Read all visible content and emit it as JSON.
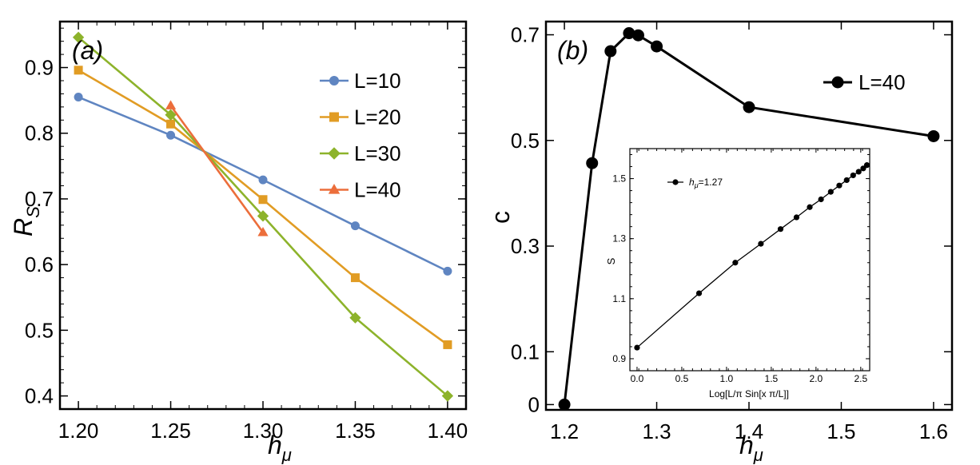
{
  "chart_data": [
    {
      "type": "line",
      "panel_label": "(a)",
      "xlabel": "h",
      "xlabel_sub": "μ",
      "ylabel": "R",
      "ylabel_sub": "S",
      "xlim": [
        1.19,
        1.41
      ],
      "ylim": [
        0.38,
        0.97
      ],
      "xticks": [
        "1.20",
        "1.25",
        "1.30",
        "1.35",
        "1.40"
      ],
      "xtick_values": [
        1.2,
        1.25,
        1.3,
        1.35,
        1.4
      ],
      "yticks": [
        "0.4",
        "0.5",
        "0.6",
        "0.7",
        "0.8",
        "0.9"
      ],
      "ytick_values": [
        0.4,
        0.5,
        0.6,
        0.7,
        0.8,
        0.9
      ],
      "legend_position": "top-right",
      "series": [
        {
          "name": "L=10",
          "marker": "circle",
          "color": "#5f85c1",
          "x": [
            1.2,
            1.25,
            1.3,
            1.35,
            1.4
          ],
          "y": [
            0.855,
            0.797,
            0.729,
            0.659,
            0.59
          ]
        },
        {
          "name": "L=20",
          "marker": "square",
          "color": "#e19c24",
          "x": [
            1.2,
            1.25,
            1.3,
            1.35,
            1.4
          ],
          "y": [
            0.896,
            0.814,
            0.699,
            0.58,
            0.478
          ]
        },
        {
          "name": "L=30",
          "marker": "diamond",
          "color": "#8db32b",
          "x": [
            1.2,
            1.25,
            1.3,
            1.35,
            1.4
          ],
          "y": [
            0.946,
            0.828,
            0.674,
            0.519,
            0.4
          ]
        },
        {
          "name": "L=40",
          "marker": "triangle",
          "color": "#ec6e3b",
          "x": [
            1.25,
            1.3
          ],
          "y": [
            0.842,
            0.649
          ]
        }
      ]
    },
    {
      "type": "line",
      "panel_label": "(b)",
      "xlabel": "h",
      "xlabel_sub": "μ",
      "ylabel": "c",
      "xlim": [
        1.18,
        1.62
      ],
      "ylim": [
        -0.01,
        0.725
      ],
      "xticks": [
        "1.2",
        "1.3",
        "1.4",
        "1.5",
        "1.6"
      ],
      "xtick_values": [
        1.2,
        1.3,
        1.4,
        1.5,
        1.6
      ],
      "yticks": [
        "0",
        "0.1",
        "0.3",
        "0.5",
        "0.7"
      ],
      "ytick_values": [
        0,
        0.1,
        0.3,
        0.5,
        0.7
      ],
      "legend_position": "top-right",
      "series": [
        {
          "name": "L=40",
          "marker": "circle",
          "color": "#000000",
          "x": [
            1.2,
            1.23,
            1.25,
            1.27,
            1.28,
            1.3,
            1.4,
            1.6
          ],
          "y": [
            0.0,
            0.457,
            0.669,
            0.703,
            0.699,
            0.678,
            0.563,
            0.508
          ]
        }
      ],
      "inset": {
        "type": "line",
        "xlabel": "Log[L/π Sin[x π/L]]",
        "ylabel": "S",
        "xlim": [
          -0.08,
          2.6
        ],
        "ylim": [
          0.86,
          1.6
        ],
        "xticks": [
          "0.0",
          "0.5",
          "1.0",
          "1.5",
          "2.0",
          "2.5"
        ],
        "xtick_values": [
          0.0,
          0.5,
          1.0,
          1.5,
          2.0,
          2.5
        ],
        "yticks": [
          "0.9",
          "1.1",
          "1.3",
          "1.5"
        ],
        "ytick_values": [
          0.9,
          1.1,
          1.3,
          1.5
        ],
        "legend_position": "top-left",
        "series": [
          {
            "name": "h",
            "name_sub": "μ",
            "name_suffix": "=1.27",
            "marker": "circle",
            "color": "#000000",
            "x": [
              0.0,
              0.693,
              1.098,
              1.384,
              1.604,
              1.782,
              1.93,
              2.056,
              2.165,
              2.26,
              2.343,
              2.415,
              2.477,
              2.528,
              2.569
            ],
            "y": [
              0.937,
              1.118,
              1.22,
              1.283,
              1.332,
              1.371,
              1.405,
              1.431,
              1.456,
              1.477,
              1.495,
              1.511,
              1.523,
              1.534,
              1.545
            ]
          }
        ]
      }
    }
  ]
}
